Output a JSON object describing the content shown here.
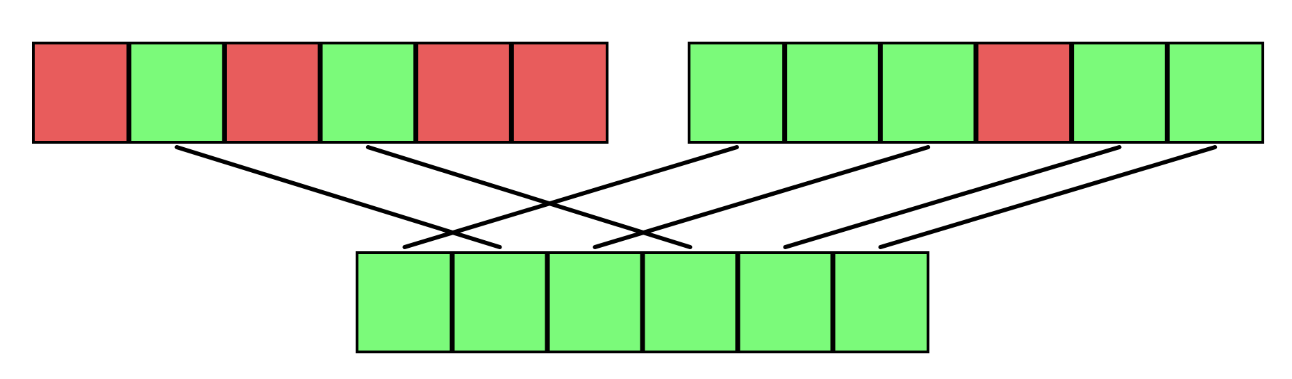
{
  "colors": {
    "good": "#7bfa7a",
    "bad": "#e85c5c",
    "stroke": "#000000",
    "background": "#ffffff"
  },
  "arrays": [
    {
      "id": "top-left",
      "cells": [
        "bad",
        "good",
        "bad",
        "good",
        "bad",
        "bad"
      ]
    },
    {
      "id": "top-right",
      "cells": [
        "good",
        "good",
        "good",
        "bad",
        "good",
        "good"
      ]
    },
    {
      "id": "bottom",
      "cells": [
        "good",
        "good",
        "good",
        "good",
        "good",
        "good"
      ]
    }
  ],
  "connections": [
    {
      "from": "top-left",
      "from_cell": 1,
      "to": "bottom",
      "to_cell": 1
    },
    {
      "from": "top-left",
      "from_cell": 3,
      "to": "bottom",
      "to_cell": 3
    },
    {
      "from": "top-right",
      "from_cell": 0,
      "to": "bottom",
      "to_cell": 0
    },
    {
      "from": "top-right",
      "from_cell": 2,
      "to": "bottom",
      "to_cell": 2
    },
    {
      "from": "top-right",
      "from_cell": 4,
      "to": "bottom",
      "to_cell": 4
    },
    {
      "from": "top-right",
      "from_cell": 5,
      "to": "bottom",
      "to_cell": 5
    }
  ]
}
